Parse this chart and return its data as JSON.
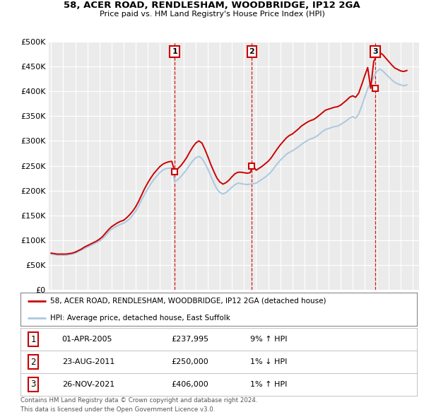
{
  "title": "58, ACER ROAD, RENDLESHAM, WOODBRIDGE, IP12 2GA",
  "subtitle": "Price paid vs. HM Land Registry's House Price Index (HPI)",
  "ylabel_ticks": [
    "£0",
    "£50K",
    "£100K",
    "£150K",
    "£200K",
    "£250K",
    "£300K",
    "£350K",
    "£400K",
    "£450K",
    "£500K"
  ],
  "ytick_values": [
    0,
    50000,
    100000,
    150000,
    200000,
    250000,
    300000,
    350000,
    400000,
    450000,
    500000
  ],
  "ylim": [
    0,
    500000
  ],
  "xlim_start": 1994.8,
  "xlim_end": 2025.5,
  "bg_color": "#ffffff",
  "plot_bg_color": "#ebebeb",
  "grid_color": "#ffffff",
  "hpi_color": "#aac8e0",
  "price_color": "#cc0000",
  "sale_marker_color": "#cc0000",
  "sale_marker_bg": "#ffffff",
  "dashed_line_color": "#cc0000",
  "annotation_box_color": "#cc0000",
  "sales": [
    {
      "id": 1,
      "date_x": 2005.25,
      "price": 237995,
      "label": "1"
    },
    {
      "id": 2,
      "date_x": 2011.65,
      "price": 250000,
      "label": "2"
    },
    {
      "id": 3,
      "date_x": 2021.9,
      "price": 406000,
      "label": "3"
    }
  ],
  "table_rows": [
    {
      "num": "1",
      "date": "01-APR-2005",
      "price": "£237,995",
      "hpi": "9% ↑ HPI"
    },
    {
      "num": "2",
      "date": "23-AUG-2011",
      "price": "£250,000",
      "hpi": "1% ↓ HPI"
    },
    {
      "num": "3",
      "date": "26-NOV-2021",
      "price": "£406,000",
      "hpi": "1% ↑ HPI"
    }
  ],
  "legend_line1": "58, ACER ROAD, RENDLESHAM, WOODBRIDGE, IP12 2GA (detached house)",
  "legend_line2": "HPI: Average price, detached house, East Suffolk",
  "footer1": "Contains HM Land Registry data © Crown copyright and database right 2024.",
  "footer2": "This data is licensed under the Open Government Licence v3.0.",
  "hpi_data_x": [
    1995.0,
    1995.25,
    1995.5,
    1995.75,
    1996.0,
    1996.25,
    1996.5,
    1996.75,
    1997.0,
    1997.25,
    1997.5,
    1997.75,
    1998.0,
    1998.25,
    1998.5,
    1998.75,
    1999.0,
    1999.25,
    1999.5,
    1999.75,
    2000.0,
    2000.25,
    2000.5,
    2000.75,
    2001.0,
    2001.25,
    2001.5,
    2001.75,
    2002.0,
    2002.25,
    2002.5,
    2002.75,
    2003.0,
    2003.25,
    2003.5,
    2003.75,
    2004.0,
    2004.25,
    2004.5,
    2004.75,
    2005.0,
    2005.25,
    2005.5,
    2005.75,
    2006.0,
    2006.25,
    2006.5,
    2006.75,
    2007.0,
    2007.25,
    2007.5,
    2007.75,
    2008.0,
    2008.25,
    2008.5,
    2008.75,
    2009.0,
    2009.25,
    2009.5,
    2009.75,
    2010.0,
    2010.25,
    2010.5,
    2010.75,
    2011.0,
    2011.25,
    2011.5,
    2011.75,
    2012.0,
    2012.25,
    2012.5,
    2012.75,
    2013.0,
    2013.25,
    2013.5,
    2013.75,
    2014.0,
    2014.25,
    2014.5,
    2014.75,
    2015.0,
    2015.25,
    2015.5,
    2015.75,
    2016.0,
    2016.25,
    2016.5,
    2016.75,
    2017.0,
    2017.25,
    2017.5,
    2017.75,
    2018.0,
    2018.25,
    2018.5,
    2018.75,
    2019.0,
    2019.25,
    2019.5,
    2019.75,
    2020.0,
    2020.25,
    2020.5,
    2020.75,
    2021.0,
    2021.25,
    2021.5,
    2021.75,
    2022.0,
    2022.25,
    2022.5,
    2022.75,
    2023.0,
    2023.25,
    2023.5,
    2023.75,
    2024.0,
    2024.25,
    2024.5
  ],
  "hpi_data_y": [
    72000,
    71000,
    70000,
    70000,
    70000,
    70000,
    71000,
    72000,
    74000,
    77000,
    80000,
    83000,
    86000,
    89000,
    92000,
    95000,
    98000,
    103000,
    109000,
    116000,
    122000,
    126000,
    129000,
    132000,
    134000,
    138000,
    143000,
    150000,
    158000,
    169000,
    181000,
    193000,
    203000,
    213000,
    222000,
    229000,
    236000,
    241000,
    244000,
    245000,
    246000,
    218000,
    222000,
    228000,
    235000,
    243000,
    252000,
    260000,
    266000,
    269000,
    265000,
    255000,
    243000,
    229000,
    215000,
    203000,
    196000,
    193000,
    196000,
    201000,
    207000,
    212000,
    215000,
    214000,
    213000,
    212000,
    213000,
    214000,
    215000,
    219000,
    223000,
    227000,
    232000,
    238000,
    246000,
    254000,
    261000,
    267000,
    273000,
    277000,
    280000,
    284000,
    288000,
    293000,
    297000,
    301000,
    304000,
    306000,
    309000,
    314000,
    319000,
    323000,
    325000,
    327000,
    329000,
    330000,
    333000,
    337000,
    341000,
    346000,
    349000,
    346000,
    354000,
    370000,
    388000,
    405000,
    418000,
    428000,
    440000,
    445000,
    441000,
    435000,
    429000,
    423000,
    418000,
    415000,
    413000,
    411000,
    413000
  ],
  "price_data_x": [
    1995.0,
    1995.25,
    1995.5,
    1995.75,
    1996.0,
    1996.25,
    1996.5,
    1996.75,
    1997.0,
    1997.25,
    1997.5,
    1997.75,
    1998.0,
    1998.25,
    1998.5,
    1998.75,
    1999.0,
    1999.25,
    1999.5,
    1999.75,
    2000.0,
    2000.25,
    2000.5,
    2000.75,
    2001.0,
    2001.25,
    2001.5,
    2001.75,
    2002.0,
    2002.25,
    2002.5,
    2002.75,
    2003.0,
    2003.25,
    2003.5,
    2003.75,
    2004.0,
    2004.25,
    2004.5,
    2004.75,
    2005.0,
    2005.25,
    2005.5,
    2005.75,
    2006.0,
    2006.25,
    2006.5,
    2006.75,
    2007.0,
    2007.25,
    2007.5,
    2007.75,
    2008.0,
    2008.25,
    2008.5,
    2008.75,
    2009.0,
    2009.25,
    2009.5,
    2009.75,
    2010.0,
    2010.25,
    2010.5,
    2010.75,
    2011.0,
    2011.25,
    2011.5,
    2011.75,
    2012.0,
    2012.25,
    2012.5,
    2012.75,
    2013.0,
    2013.25,
    2013.5,
    2013.75,
    2014.0,
    2014.25,
    2014.5,
    2014.75,
    2015.0,
    2015.25,
    2015.5,
    2015.75,
    2016.0,
    2016.25,
    2016.5,
    2016.75,
    2017.0,
    2017.25,
    2017.5,
    2017.75,
    2018.0,
    2018.25,
    2018.5,
    2018.75,
    2019.0,
    2019.25,
    2019.5,
    2019.75,
    2020.0,
    2020.25,
    2020.5,
    2020.75,
    2021.0,
    2021.25,
    2021.5,
    2021.75,
    2022.0,
    2022.25,
    2022.5,
    2022.75,
    2023.0,
    2023.25,
    2023.5,
    2023.75,
    2024.0,
    2024.25,
    2024.5
  ],
  "price_data_y": [
    74000,
    73000,
    72000,
    72000,
    72000,
    72000,
    73000,
    74000,
    76000,
    79000,
    82000,
    86000,
    89000,
    92000,
    95000,
    98000,
    102000,
    107000,
    114000,
    121000,
    127000,
    131000,
    135000,
    138000,
    140000,
    145000,
    151000,
    158000,
    167000,
    178000,
    191000,
    204000,
    215000,
    225000,
    234000,
    241000,
    248000,
    253000,
    256000,
    258000,
    259000,
    237995,
    244000,
    250000,
    258000,
    267000,
    278000,
    288000,
    296000,
    300000,
    296000,
    283000,
    268000,
    252000,
    238000,
    225000,
    217000,
    213000,
    216000,
    221000,
    228000,
    234000,
    237000,
    237000,
    236000,
    235000,
    236000,
    250000,
    241000,
    245000,
    249000,
    254000,
    259000,
    266000,
    275000,
    284000,
    292000,
    299000,
    306000,
    311000,
    314000,
    319000,
    324000,
    330000,
    334000,
    338000,
    341000,
    343000,
    347000,
    352000,
    357000,
    362000,
    364000,
    366000,
    368000,
    369000,
    372000,
    377000,
    382000,
    388000,
    391000,
    388000,
    396000,
    413000,
    431000,
    448000,
    406000,
    460000,
    472000,
    478000,
    474000,
    467000,
    460000,
    453000,
    447000,
    444000,
    441000,
    440000,
    442000
  ]
}
